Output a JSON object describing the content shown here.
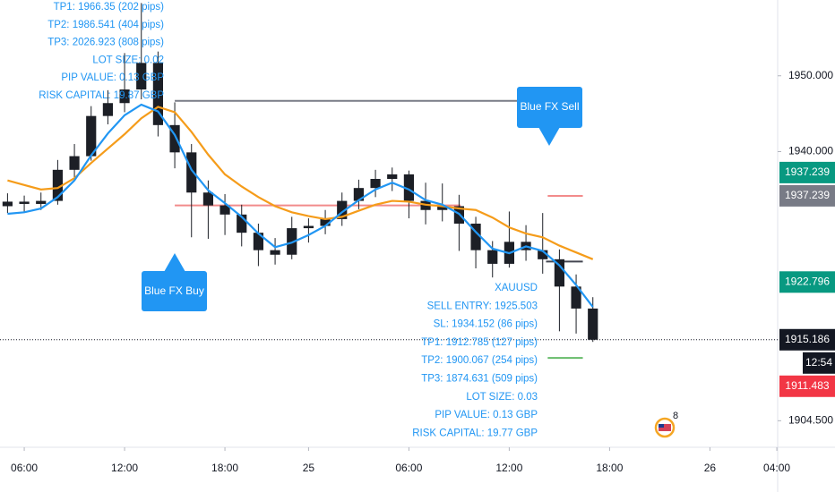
{
  "chart_data": {
    "type": "candlestick",
    "x": [
      5,
      6,
      7,
      8,
      9,
      10,
      11,
      12,
      13,
      14,
      15,
      16,
      17,
      18,
      19,
      20,
      21,
      22,
      23,
      24,
      25,
      26,
      27,
      28,
      29,
      30,
      31,
      32,
      33,
      34,
      35,
      36,
      37,
      38,
      39,
      40
    ],
    "open": [
      1932.8,
      1933.4,
      1933.1,
      1933.5,
      1937.6,
      1939.4,
      1944.7,
      1946.4,
      1948.2,
      1951.7,
      1943.5,
      1939.9,
      1934.6,
      1932.9,
      1931.7,
      1929.3,
      1927.0,
      1926.4,
      1929.9,
      1930.2,
      1931.1,
      1933.5,
      1935.2,
      1936.4,
      1937.0,
      1933.5,
      1932.3,
      1932.8,
      1930.5,
      1927.0,
      1925.2,
      1928.1,
      1927.0,
      1925.8,
      1922.2,
      1919.3
    ],
    "high": [
      1934.5,
      1934.2,
      1934.6,
      1938.9,
      1941.0,
      1946.0,
      1948.1,
      1953.0,
      1959.6,
      1953.2,
      1946.5,
      1941.0,
      1936.2,
      1934.4,
      1933.0,
      1930.5,
      1928.6,
      1931.4,
      1931.2,
      1932.3,
      1934.6,
      1936.3,
      1937.6,
      1937.9,
      1937.5,
      1935.9,
      1935.8,
      1934.3,
      1931.4,
      1928.2,
      1932.1,
      1930.3,
      1931.9,
      1927.1,
      1923.8,
      1920.8
    ],
    "low": [
      1931.9,
      1932.0,
      1932.3,
      1933.0,
      1936.5,
      1938.8,
      1943.6,
      1945.2,
      1946.9,
      1942.0,
      1937.8,
      1928.7,
      1928.5,
      1929.0,
      1927.5,
      1924.9,
      1925.1,
      1925.8,
      1928.0,
      1929.1,
      1930.2,
      1932.4,
      1934.0,
      1934.8,
      1931.2,
      1930.4,
      1930.8,
      1926.9,
      1924.6,
      1923.4,
      1924.7,
      1925.6,
      1923.9,
      1916.3,
      1916.0,
      1914.9
    ],
    "close": [
      1933.4,
      1933.1,
      1933.5,
      1937.6,
      1939.4,
      1944.7,
      1946.4,
      1948.2,
      1951.7,
      1943.5,
      1939.9,
      1934.6,
      1932.9,
      1931.7,
      1929.3,
      1927.0,
      1926.4,
      1929.9,
      1930.2,
      1931.1,
      1933.5,
      1935.2,
      1936.4,
      1937.0,
      1933.5,
      1932.3,
      1932.8,
      1930.5,
      1927.0,
      1925.2,
      1928.1,
      1927.0,
      1925.8,
      1922.2,
      1919.3,
      1915.186
    ],
    "candle_color": "#1c1f26",
    "series": [
      {
        "color": "#f59c1a",
        "values": [
          1936.2,
          1935.6,
          1935.0,
          1935.2,
          1936.5,
          1938.5,
          1940.4,
          1942.3,
          1944.4,
          1945.9,
          1945.2,
          1942.6,
          1939.6,
          1937.0,
          1935.4,
          1934.0,
          1932.8,
          1932.0,
          1931.5,
          1931.1,
          1931.4,
          1932.2,
          1933.0,
          1933.5,
          1933.4,
          1933.0,
          1932.8,
          1932.5,
          1932.3,
          1931.3,
          1930.0,
          1929.2,
          1928.7,
          1927.6,
          1926.7,
          1925.8
        ]
      },
      {
        "color": "#2196f3",
        "values": [
          1931.8,
          1932.0,
          1932.5,
          1934.0,
          1936.2,
          1939.5,
          1942.4,
          1944.8,
          1946.2,
          1945.3,
          1942.2,
          1937.6,
          1934.9,
          1933.2,
          1931.4,
          1929.2,
          1927.4,
          1928.0,
          1929.0,
          1930.2,
          1932.0,
          1933.6,
          1935.0,
          1935.9,
          1935.0,
          1933.6,
          1933.0,
          1931.8,
          1929.4,
          1927.2,
          1926.6,
          1927.5,
          1926.9,
          1925.0,
          1922.4,
          1919.5
        ]
      }
    ],
    "levels": [
      {
        "value": 1946.7,
        "color": "#787b86",
        "x": [
          15,
          35.6
        ]
      },
      {
        "value": 1932.9,
        "color": "#f28b8b",
        "x": [
          15,
          32.1
        ]
      },
      {
        "value": 1934.152,
        "color": "#f28b8b",
        "x": [
          37.3,
          39.4
        ]
      },
      {
        "value": 1925.503,
        "color": "#434651",
        "x": [
          37.2,
          39.4
        ]
      },
      {
        "value": 1912.785,
        "color": "#66bb6a",
        "x": [
          37.3,
          39.4
        ]
      }
    ],
    "last_price": 1915.186,
    "xlim": [
      4.55,
      51.05
    ],
    "ylim": [
      1901,
      1960
    ],
    "xticks": [
      {
        "value": 6,
        "label": "06:00"
      },
      {
        "value": 12,
        "label": "12:00"
      },
      {
        "value": 18,
        "label": "18:00"
      },
      {
        "value": 23,
        "label": "25"
      },
      {
        "value": 29,
        "label": "06:00"
      },
      {
        "value": 35,
        "label": "12:00"
      },
      {
        "value": 41,
        "label": "18:00"
      },
      {
        "value": 47,
        "label": "26"
      },
      {
        "value": 51,
        "label": "04:00"
      }
    ],
    "yticks": [
      {
        "value": 1950,
        "label": "1950.000"
      },
      {
        "value": 1940,
        "label": "1940.000"
      },
      {
        "value": 1904.5,
        "label": "1904.500"
      }
    ],
    "price_tags": [
      {
        "value": 1937.239,
        "color": "#089981"
      },
      {
        "value": 1937.239,
        "color": "#787b86"
      },
      {
        "value": 1922.796,
        "color": "#089981"
      },
      {
        "value": 1915.186,
        "color": "#131722"
      },
      {
        "value": 1911.483,
        "color": "#f23645"
      }
    ],
    "countdown": "12:54",
    "annotation_top": [
      "TP1: 1966.35 (202 pips)",
      "TP2: 1986.541 (404 pips)",
      "TP3: 2026.923 (808 pips)",
      "LOT SIZE: 0.02",
      "PIP VALUE: 0.13 GBP",
      "RISK CAPITAL: 19.87 GBP"
    ],
    "annotation_bottom": [
      "XAUUSD",
      "SELL ENTRY: 1925.503",
      "SL: 1934.152 (86 pips)",
      "TP1: 1912.785 (127 pips)",
      "TP2: 1900.067 (254 pips)",
      "TP3: 1874.631 (509 pips)",
      "LOT SIZE: 0.03",
      "PIP VALUE: 0.13 GBP",
      "RISK CAPITAL: 19.77 GBP"
    ],
    "buy_label": "Blue FX Buy",
    "sell_label": "Blue FX Sell",
    "badge": "8"
  }
}
